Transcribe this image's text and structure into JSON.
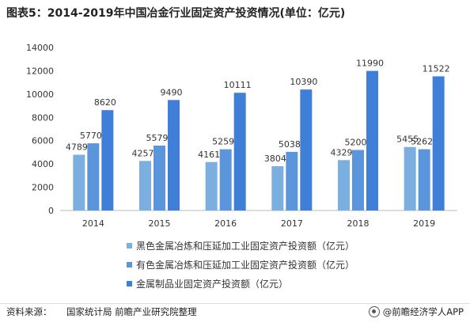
{
  "title": "图表5：2014-2019年中国冶金行业固定资产投资情况(单位：亿元)",
  "chart_data": {
    "type": "bar",
    "categories": [
      "2014",
      "2015",
      "2016",
      "2017",
      "2018",
      "2019"
    ],
    "series": [
      {
        "name": "黑色金属冶炼和压延加工业固定资产投资额（亿元）",
        "values": [
          4789,
          4257,
          4161,
          3804,
          4329,
          5455
        ],
        "color": "#7bafe0"
      },
      {
        "name": "有色金属冶炼和压延加工业固定资产投资额（亿元）",
        "values": [
          5770,
          5579,
          5259,
          5038,
          5200,
          5262
        ],
        "color": "#5b95db"
      },
      {
        "name": "金属制品业固定资产投资额（亿元）",
        "values": [
          8620,
          9490,
          10111,
          10390,
          11990,
          11522
        ],
        "color": "#3f7fd8"
      }
    ],
    "yticks": [
      "0",
      "2000",
      "4000",
      "6000",
      "8000",
      "10000",
      "12000",
      "14000"
    ],
    "ylim": [
      0,
      14000
    ],
    "grid": false,
    "legend_position": "bottom"
  },
  "footer": {
    "source_label": "资料来源：",
    "source_text": "国家统计局 前瞻产业研究院整理",
    "brand": "@前瞻经济学人APP"
  }
}
